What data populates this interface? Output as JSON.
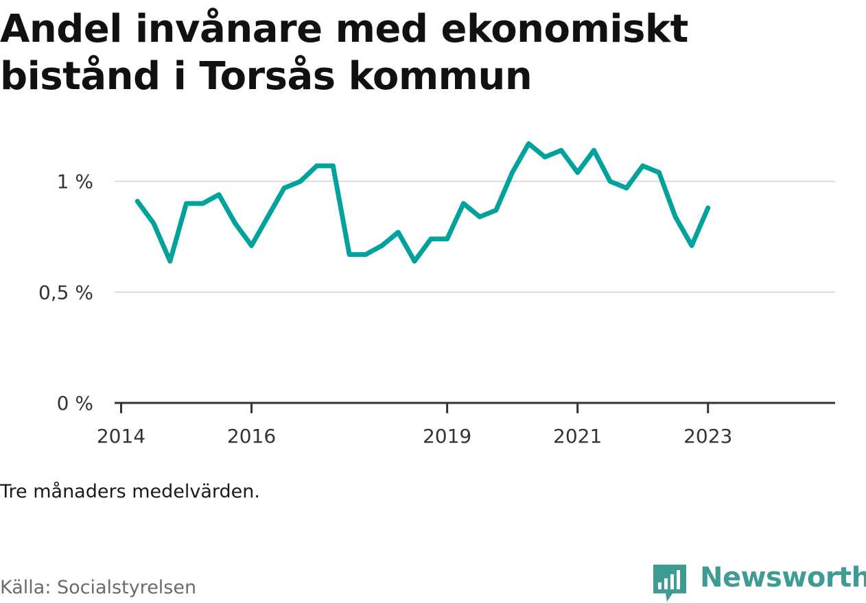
{
  "title": "Andel invånare med ekonomiskt bistånd i Torsås kommun",
  "note": "Tre månaders medelvärden.",
  "source": "Källa: Socialstyrelsen",
  "brand": {
    "name": "Newsworthy",
    "icon": "bar-chart-logo-icon",
    "color": "#3f9c95"
  },
  "line_color": "#00a39b",
  "chart_data": {
    "type": "line",
    "title": "Andel invånare med ekonomiskt bistånd i Torsås kommun",
    "xlabel": "",
    "ylabel": "",
    "y_unit": "%",
    "ylim": [
      0,
      1.2
    ],
    "y_ticks": [
      {
        "value": 0,
        "label": "0 %"
      },
      {
        "value": 0.5,
        "label": "0,5 %"
      },
      {
        "value": 1,
        "label": "1 %"
      }
    ],
    "x_ticks": [
      {
        "value": 2014.0,
        "label": "2014"
      },
      {
        "value": 2016.0,
        "label": "2016"
      },
      {
        "value": 2019.0,
        "label": "2019"
      },
      {
        "value": 2021.0,
        "label": "2021"
      },
      {
        "value": 2023.0,
        "label": "2023"
      }
    ],
    "xlim": [
      2013.9,
      2024.95
    ],
    "grid": "horizontal",
    "series": [
      {
        "x": [
          "2014-04",
          "2014-07",
          "2014-10",
          "2015-01",
          "2015-04",
          "2015-07",
          "2015-10",
          "2016-01",
          "2016-04",
          "2016-07",
          "2016-10",
          "2017-01",
          "2017-04",
          "2017-07",
          "2017-10",
          "2018-01",
          "2018-04",
          "2018-07",
          "2018-10",
          "2019-01",
          "2019-04",
          "2019-07",
          "2019-10",
          "2020-01",
          "2020-04",
          "2020-07",
          "2020-10",
          "2021-01",
          "2021-04",
          "2021-07",
          "2021-10",
          "2022-01",
          "2022-04",
          "2022-07",
          "2022-10",
          "2023-01"
        ],
        "values": [
          0.91,
          0.81,
          0.64,
          0.9,
          0.9,
          0.94,
          0.81,
          0.71,
          0.84,
          0.97,
          1.0,
          1.07,
          1.07,
          0.67,
          0.67,
          0.71,
          0.77,
          0.64,
          0.74,
          0.74,
          0.9,
          0.84,
          0.87,
          1.04,
          1.17,
          1.11,
          1.14,
          1.04,
          1.14,
          1.0,
          0.97,
          1.07,
          1.04,
          0.84,
          0.71,
          0.88
        ]
      }
    ]
  }
}
